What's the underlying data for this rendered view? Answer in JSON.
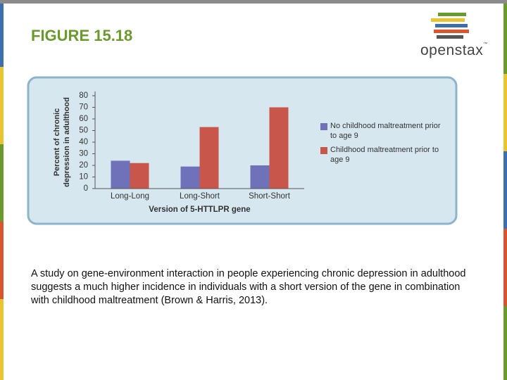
{
  "title": "FIGURE 15.18",
  "logo": {
    "text": "openstax",
    "mark": "™"
  },
  "chart_data": {
    "type": "bar",
    "categories": [
      "Long-Long",
      "Long-Short",
      "Short-Short"
    ],
    "series": [
      {
        "name": "No childhood maltreatment prior to age 9",
        "color": "#6f72b8",
        "values": [
          24,
          19,
          20
        ]
      },
      {
        "name": "Childhood maltreatment prior to age 9",
        "color": "#c8564a",
        "values": [
          22,
          53,
          70
        ]
      }
    ],
    "xlabel": "Version of 5-HTTLPR gene",
    "ylabel": "Percent of chronic depression in adulthood",
    "ylim": [
      0,
      80
    ],
    "yticks": [
      0,
      10,
      20,
      30,
      40,
      50,
      60,
      70,
      80
    ],
    "grid": false,
    "legend": "right"
  },
  "caption": "A study on gene-environment interaction in people experiencing chronic depression in adulthood suggests a much higher incidence in individuals with a short version of the gene in combination with childhood maltreatment (Brown & Harris, 2013)."
}
